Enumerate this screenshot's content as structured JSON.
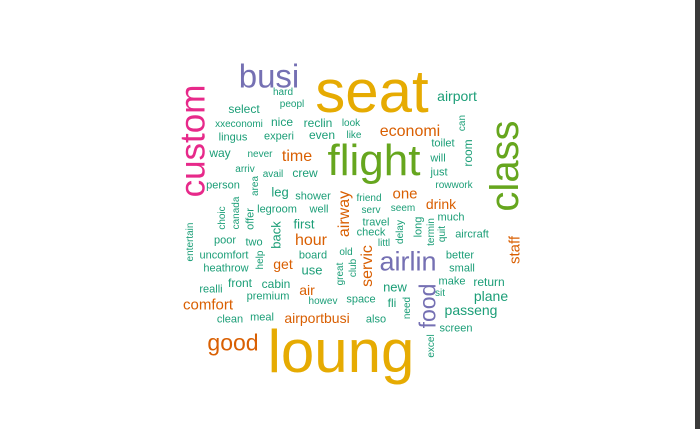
{
  "colors": {
    "teal": "#1b9e77",
    "orange": "#d95f02",
    "purple": "#7570b3",
    "magenta": "#e7298a",
    "green": "#66a61e",
    "gold": "#e6ab02"
  },
  "words": [
    {
      "text": "seat",
      "color": "gold"
    },
    {
      "text": "loung",
      "color": "gold"
    },
    {
      "text": "flight",
      "color": "green"
    },
    {
      "text": "class",
      "color": "green"
    },
    {
      "text": "custom",
      "color": "magenta"
    },
    {
      "text": "busi",
      "color": "purple"
    },
    {
      "text": "airlin",
      "color": "purple"
    },
    {
      "text": "good",
      "color": "orange"
    },
    {
      "text": "food",
      "color": "purple"
    },
    {
      "text": "airport",
      "color": "teal"
    },
    {
      "text": "economi",
      "color": "orange"
    },
    {
      "text": "time",
      "color": "orange"
    },
    {
      "text": "comfort",
      "color": "orange"
    },
    {
      "text": "airportbusi",
      "color": "orange"
    },
    {
      "text": "hour",
      "color": "orange"
    },
    {
      "text": "airway",
      "color": "orange"
    },
    {
      "text": "servic",
      "color": "orange"
    },
    {
      "text": "staff",
      "color": "orange"
    },
    {
      "text": "one",
      "color": "orange"
    },
    {
      "text": "drink",
      "color": "orange"
    },
    {
      "text": "get",
      "color": "orange"
    },
    {
      "text": "air",
      "color": "orange"
    },
    {
      "text": "plane",
      "color": "teal"
    },
    {
      "text": "passeng",
      "color": "teal"
    },
    {
      "text": "new",
      "color": "teal"
    },
    {
      "text": "first",
      "color": "teal"
    },
    {
      "text": "back",
      "color": "teal"
    },
    {
      "text": "use",
      "color": "teal"
    },
    {
      "text": "leg",
      "color": "teal"
    },
    {
      "text": "crew",
      "color": "teal"
    },
    {
      "text": "nice",
      "color": "teal"
    },
    {
      "text": "reclin",
      "color": "teal"
    },
    {
      "text": "even",
      "color": "teal"
    },
    {
      "text": "select",
      "color": "teal"
    },
    {
      "text": "hard",
      "color": "teal"
    },
    {
      "text": "peopl",
      "color": "teal"
    },
    {
      "text": "xxeconomi",
      "color": "teal"
    },
    {
      "text": "lingus",
      "color": "teal"
    },
    {
      "text": "experi",
      "color": "teal"
    },
    {
      "text": "look",
      "color": "teal"
    },
    {
      "text": "like",
      "color": "teal"
    },
    {
      "text": "can",
      "color": "teal"
    },
    {
      "text": "room",
      "color": "teal"
    },
    {
      "text": "toilet",
      "color": "teal"
    },
    {
      "text": "way",
      "color": "teal"
    },
    {
      "text": "never",
      "color": "teal"
    },
    {
      "text": "will",
      "color": "teal"
    },
    {
      "text": "arriv",
      "color": "teal"
    },
    {
      "text": "avail",
      "color": "teal"
    },
    {
      "text": "just",
      "color": "teal"
    },
    {
      "text": "person",
      "color": "teal"
    },
    {
      "text": "area",
      "color": "teal"
    },
    {
      "text": "rowwork",
      "color": "teal"
    },
    {
      "text": "shower",
      "color": "teal"
    },
    {
      "text": "friend",
      "color": "teal"
    },
    {
      "text": "legroom",
      "color": "teal"
    },
    {
      "text": "well",
      "color": "teal"
    },
    {
      "text": "serv",
      "color": "teal"
    },
    {
      "text": "seem",
      "color": "teal"
    },
    {
      "text": "much",
      "color": "teal"
    },
    {
      "text": "choic",
      "color": "teal"
    },
    {
      "text": "canada",
      "color": "teal"
    },
    {
      "text": "offer",
      "color": "teal"
    },
    {
      "text": "travel",
      "color": "teal"
    },
    {
      "text": "long",
      "color": "teal"
    },
    {
      "text": "termin",
      "color": "teal"
    },
    {
      "text": "quit",
      "color": "teal"
    },
    {
      "text": "entertain",
      "color": "teal"
    },
    {
      "text": "poor",
      "color": "teal"
    },
    {
      "text": "two",
      "color": "teal"
    },
    {
      "text": "check",
      "color": "teal"
    },
    {
      "text": "delay",
      "color": "teal"
    },
    {
      "text": "littl",
      "color": "teal"
    },
    {
      "text": "aircraft",
      "color": "teal"
    },
    {
      "text": "uncomfort",
      "color": "teal"
    },
    {
      "text": "old",
      "color": "teal"
    },
    {
      "text": "board",
      "color": "teal"
    },
    {
      "text": "better",
      "color": "teal"
    },
    {
      "text": "heathrow",
      "color": "teal"
    },
    {
      "text": "help",
      "color": "teal"
    },
    {
      "text": "great",
      "color": "teal"
    },
    {
      "text": "club",
      "color": "teal"
    },
    {
      "text": "small",
      "color": "teal"
    },
    {
      "text": "make",
      "color": "teal"
    },
    {
      "text": "return",
      "color": "teal"
    },
    {
      "text": "realli",
      "color": "teal"
    },
    {
      "text": "front",
      "color": "teal"
    },
    {
      "text": "cabin",
      "color": "teal"
    },
    {
      "text": "sit",
      "color": "teal"
    },
    {
      "text": "premium",
      "color": "teal"
    },
    {
      "text": "howev",
      "color": "teal"
    },
    {
      "text": "space",
      "color": "teal"
    },
    {
      "text": "fli",
      "color": "teal"
    },
    {
      "text": "clean",
      "color": "teal"
    },
    {
      "text": "meal",
      "color": "teal"
    },
    {
      "text": "need",
      "color": "teal"
    },
    {
      "text": "also",
      "color": "teal"
    },
    {
      "text": "screen",
      "color": "teal"
    },
    {
      "text": "excel",
      "color": "teal"
    }
  ]
}
